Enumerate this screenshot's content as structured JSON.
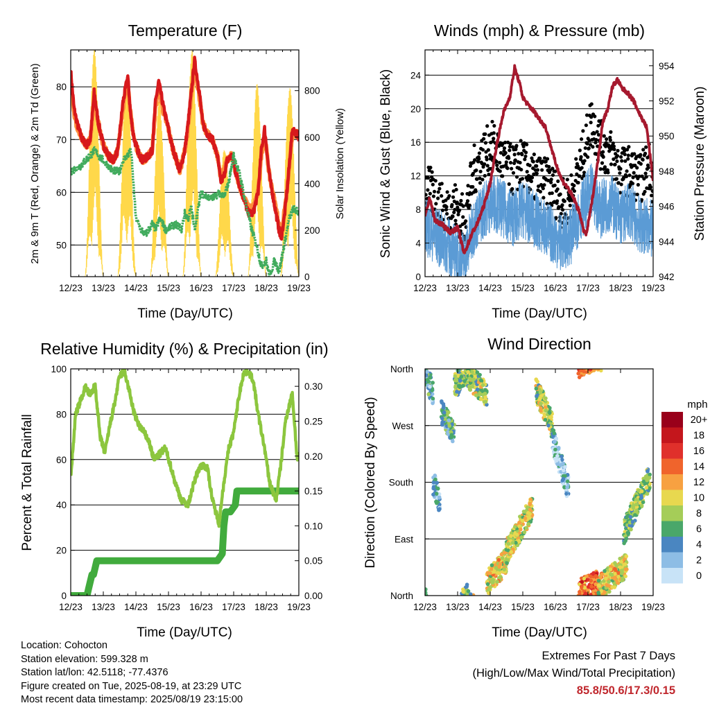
{
  "chart_data": [
    {
      "type": "line",
      "title": "Temperature (F)",
      "xlabel": "Time (Day/UTC)",
      "ylabel": "2m & 9m T (Red, Orange) & 2m Td (Green)",
      "ylabel_right": "Solar Insolation (Yellow)",
      "x_ticks": [
        "12/23",
        "13/23",
        "14/23",
        "15/23",
        "16/23",
        "17/23",
        "18/23",
        "19/23"
      ],
      "ylim": [
        44,
        87
      ],
      "y_ticks": [
        "50",
        "60",
        "70",
        "80"
      ],
      "ylim_right": [
        0,
        975
      ],
      "y_ticks_right": [
        "0",
        "200",
        "400",
        "600",
        "800"
      ],
      "series": [
        {
          "name": "2m T",
          "color": "#d7191c",
          "x": [
            0,
            0.1,
            0.2,
            0.35,
            0.5,
            0.6,
            0.72,
            0.85,
            1,
            1.15,
            1.3,
            1.45,
            1.5,
            1.6,
            1.75,
            1.85,
            1.95,
            2.05,
            2.2,
            2.4,
            2.5,
            2.6,
            2.7,
            2.85,
            3,
            3.1,
            3.2,
            3.35,
            3.5,
            3.6,
            3.7,
            3.8,
            3.95,
            4.05,
            4.2,
            4.35,
            4.5,
            4.6,
            4.7,
            4.8,
            4.95,
            5.05,
            5.25,
            5.45,
            5.6,
            5.75,
            5.85,
            5.95,
            6.1,
            6.3,
            6.45,
            6.55,
            6.65,
            6.8,
            6.95,
            7
          ],
          "values": [
            83,
            76,
            73,
            70,
            69,
            70,
            79,
            73,
            69,
            67,
            66,
            68,
            71,
            77,
            82,
            74,
            70,
            68,
            66,
            67,
            68,
            77,
            81,
            76,
            72,
            69,
            67,
            64,
            68,
            73,
            79,
            85,
            79,
            73,
            71,
            70,
            67,
            62,
            63,
            66,
            67,
            64,
            60,
            56,
            56,
            60,
            68,
            72,
            63,
            56,
            51,
            55,
            61,
            72,
            71,
            70
          ]
        },
        {
          "name": "9m T",
          "color": "#fd8d3c",
          "x": [
            0,
            0.1,
            0.2,
            0.35,
            0.5,
            0.6,
            0.72,
            0.85,
            1,
            1.15,
            1.3,
            1.45,
            1.5,
            1.6,
            1.75,
            1.85,
            1.95,
            2.05,
            2.2,
            2.4,
            2.5,
            2.6,
            2.7,
            2.85,
            3,
            3.1,
            3.2,
            3.35,
            3.5,
            3.6,
            3.7,
            3.8,
            3.95,
            4.05,
            4.2,
            4.35,
            4.5,
            4.6,
            4.7,
            4.8,
            4.95,
            5.05,
            5.25,
            5.45,
            5.6,
            5.75,
            5.85,
            5.95,
            6.1,
            6.3,
            6.45,
            6.55,
            6.65,
            6.8,
            6.95,
            7
          ],
          "values": [
            82,
            75,
            72,
            70,
            69,
            70,
            78,
            73,
            69,
            67,
            66,
            68,
            71,
            76,
            81,
            74,
            70,
            68,
            66,
            67,
            68,
            76,
            80,
            75,
            72,
            69,
            67,
            64,
            68,
            72,
            78,
            84,
            78,
            73,
            71,
            70,
            67,
            63,
            64,
            66,
            67,
            64,
            60,
            57,
            57,
            60,
            67,
            71,
            63,
            57,
            52,
            56,
            61,
            71,
            71,
            70
          ]
        },
        {
          "name": "2m Td",
          "color": "#41ab5d",
          "x": [
            0,
            0.3,
            0.6,
            0.75,
            0.85,
            1,
            1.15,
            1.3,
            1.5,
            1.6,
            1.75,
            1.85,
            2,
            2.15,
            2.3,
            2.5,
            2.6,
            2.75,
            2.9,
            3,
            3.2,
            3.4,
            3.5,
            3.6,
            3.7,
            3.8,
            4,
            4.2,
            4.4,
            4.55,
            4.7,
            4.85,
            5,
            5.2,
            5.4,
            5.55,
            5.7,
            5.85,
            6,
            6.1,
            6.25,
            6.4,
            6.55,
            6.7,
            6.85,
            7
          ],
          "values": [
            64,
            65,
            67,
            68,
            67,
            66,
            65,
            64,
            64,
            66,
            67,
            68,
            55,
            53,
            52,
            54,
            53,
            55,
            53,
            53,
            54,
            53,
            56,
            55,
            57,
            53,
            60,
            59,
            59,
            60,
            59,
            62,
            67,
            63,
            57,
            53,
            50,
            46,
            47,
            44,
            47,
            45,
            50,
            55,
            57,
            56
          ]
        }
      ],
      "solar_series": {
        "name": "Solar Insolation",
        "color": "#ffd84a",
        "peak_days": [
          0.72,
          1.72,
          2.72,
          3.72,
          4.72,
          5.72,
          6.72
        ],
        "peaks": [
          980,
          870,
          760,
          980,
          560,
          830,
          820
        ]
      }
    },
    {
      "type": "line",
      "title": "Winds (mph) & Pressure (mb)",
      "xlabel": "Time (Day/UTC)",
      "ylabel": "Sonic Wind & Gust (Blue, Black)",
      "ylabel_right": "Station Pressure (Maroon)",
      "x_ticks": [
        "12/23",
        "13/23",
        "14/23",
        "15/23",
        "16/23",
        "17/23",
        "18/23",
        "19/23"
      ],
      "ylim": [
        0,
        27
      ],
      "y_ticks": [
        "0",
        "4",
        "8",
        "12",
        "16",
        "20",
        "24"
      ],
      "ylim_right": [
        942,
        954.9
      ],
      "y_ticks_right": [
        "942",
        "944",
        "946",
        "948",
        "950",
        "952",
        "954"
      ],
      "series": [
        {
          "name": "Sonic Wind",
          "color": "#5b9bd5",
          "x": [
            0,
            0.3,
            0.6,
            0.9,
            1.2,
            1.5,
            1.8,
            2.1,
            2.4,
            2.7,
            3,
            3.3,
            3.6,
            3.9,
            4.2,
            4.5,
            4.8,
            5.1,
            5.4,
            5.7,
            6,
            6.3,
            6.6,
            6.9,
            7
          ],
          "values": [
            6,
            5,
            4,
            3,
            2,
            6,
            8,
            9,
            8,
            7,
            8,
            7,
            6,
            5,
            4,
            5,
            8,
            10,
            8,
            9,
            7,
            8,
            6,
            6,
            5
          ]
        },
        {
          "name": "Gust",
          "color": "#000000",
          "x": [
            0,
            0.3,
            0.6,
            0.9,
            1.2,
            1.5,
            1.8,
            2.1,
            2.4,
            2.7,
            3,
            3.3,
            3.6,
            3.9,
            4.2,
            4.5,
            4.8,
            5.1,
            5.4,
            5.7,
            6,
            6.3,
            6.6,
            6.9,
            7
          ],
          "values": [
            10,
            9,
            7,
            8,
            6,
            12,
            14,
            15,
            13,
            12,
            13,
            11,
            11,
            10,
            8,
            9,
            13,
            18,
            15,
            14,
            12,
            12,
            11,
            13,
            10
          ]
        }
      ],
      "pressure_series": {
        "name": "Station Pressure",
        "color": "#a6192e",
        "x": [
          0,
          0.15,
          0.3,
          0.5,
          0.8,
          1,
          1.2,
          1.45,
          1.6,
          1.8,
          2,
          2.2,
          2.4,
          2.6,
          2.75,
          2.9,
          3,
          3.15,
          3.3,
          3.5,
          3.7,
          3.85,
          4,
          4.2,
          4.4,
          4.6,
          4.75,
          4.85,
          4.95,
          5.1,
          5.3,
          5.45,
          5.6,
          5.75,
          5.9,
          6.05,
          6.2,
          6.4,
          6.6,
          6.8,
          6.9,
          7
        ],
        "values": [
          945.4,
          946.5,
          945.2,
          945.0,
          944.5,
          944.8,
          943.3,
          944.5,
          945.0,
          946.0,
          947.3,
          949.5,
          951.3,
          952.2,
          953.9,
          953.0,
          952.2,
          951.8,
          951.5,
          951.0,
          950.5,
          949.5,
          948.5,
          947.5,
          947.0,
          946.3,
          945.6,
          944.7,
          944.4,
          946.0,
          948.5,
          950.8,
          951.5,
          952.8,
          953.2,
          952.7,
          952.5,
          952.0,
          951.2,
          950.5,
          949.0,
          947.5
        ]
      }
    },
    {
      "type": "line",
      "title": "Relative Humidity (%) & Precipitation (in)",
      "xlabel": "Time (Day/UTC)",
      "ylabel": "Percent & Total Rainfall",
      "x_ticks": [
        "12/23",
        "13/23",
        "14/23",
        "15/23",
        "16/23",
        "17/23",
        "18/23",
        "19/23"
      ],
      "ylim": [
        0,
        100
      ],
      "y_ticks": [
        "0",
        "20",
        "40",
        "60",
        "80",
        "100"
      ],
      "ylim_right": [
        0,
        0.325
      ],
      "y_ticks_right": [
        "0.00",
        "0.05",
        "0.10",
        "0.15",
        "0.20",
        "0.25",
        "0.30"
      ],
      "series": [
        {
          "name": "Relative Humidity",
          "color": "#8cc63e",
          "x": [
            0,
            0.15,
            0.3,
            0.45,
            0.6,
            0.75,
            0.9,
            1.05,
            1.2,
            1.35,
            1.5,
            1.65,
            1.8,
            1.95,
            2.1,
            2.25,
            2.4,
            2.55,
            2.7,
            2.9,
            3.05,
            3.2,
            3.4,
            3.6,
            3.75,
            3.9,
            4.05,
            4.2,
            4.35,
            4.55,
            4.7,
            4.85,
            5,
            5.15,
            5.3,
            5.45,
            5.6,
            5.75,
            5.95,
            6.1,
            6.3,
            6.45,
            6.6,
            6.8,
            6.95,
            7
          ],
          "values": [
            52,
            80,
            86,
            92,
            88,
            93,
            70,
            63,
            75,
            85,
            97,
            99,
            90,
            80,
            75,
            72,
            68,
            60,
            62,
            65,
            58,
            50,
            42,
            40,
            48,
            55,
            58,
            56,
            42,
            32,
            50,
            65,
            72,
            87,
            98,
            99,
            95,
            80,
            65,
            50,
            42,
            58,
            78,
            89,
            60,
            63
          ]
        },
        {
          "name": "Total Precipitation",
          "color": "#41ab3d",
          "x": [
            0,
            0.5,
            0.55,
            0.65,
            0.7,
            0.8,
            0.9,
            1,
            2,
            3,
            4,
            4.5,
            4.65,
            4.7,
            4.75,
            4.9,
            5.05,
            5.1,
            5.2,
            6,
            7
          ],
          "values": [
            0,
            0,
            0.01,
            0.03,
            0.03,
            0.05,
            0.05,
            0.05,
            0.05,
            0.05,
            0.05,
            0.05,
            0.06,
            0.1,
            0.12,
            0.12,
            0.13,
            0.15,
            0.15,
            0.15,
            0.15
          ]
        }
      ]
    },
    {
      "type": "scatter",
      "title": "Wind Direction",
      "xlabel": "Time (Day/UTC)",
      "ylabel": "Direction (Colored By Speed)",
      "x_ticks": [
        "12/23",
        "13/23",
        "14/23",
        "15/23",
        "16/23",
        "17/23",
        "18/23",
        "19/23"
      ],
      "y_ticks": [
        "North",
        "East",
        "South",
        "West",
        "North"
      ],
      "ylim": [
        0,
        360
      ],
      "colorbar": {
        "unit": "mph",
        "labels": [
          "20+",
          "18",
          "16",
          "14",
          "12",
          "10",
          "8",
          "6",
          "4",
          "2",
          "0"
        ],
        "colors": [
          "#99001a",
          "#c4161c",
          "#e0302b",
          "#f0642c",
          "#f7a141",
          "#e8d84f",
          "#a5cd58",
          "#4aa76a",
          "#4a86c1",
          "#8dbde5",
          "#c8e3f7"
        ]
      },
      "clusters": [
        {
          "x0": 0.0,
          "x1": 0.25,
          "dir0": 355,
          "dir1": 320,
          "speed": 4
        },
        {
          "x0": 0.25,
          "x1": 0.45,
          "dir0": 180,
          "dir1": 150,
          "speed": 3
        },
        {
          "x0": 0.5,
          "x1": 0.9,
          "dir0": 290,
          "dir1": 260,
          "speed": 5
        },
        {
          "x0": 0.9,
          "x1": 1.3,
          "dir0": 330,
          "dir1": 360,
          "speed": 7
        },
        {
          "x0": 1.3,
          "x1": 1.9,
          "dir0": 350,
          "dir1": 320,
          "speed": 8
        },
        {
          "x0": 1.9,
          "x1": 2.5,
          "dir0": 20,
          "dir1": 55,
          "speed": 10
        },
        {
          "x0": 2.5,
          "x1": 3.3,
          "dir0": 70,
          "dir1": 140,
          "speed": 9
        },
        {
          "x0": 3.4,
          "x1": 3.9,
          "dir0": 330,
          "dir1": 270,
          "speed": 8
        },
        {
          "x0": 3.9,
          "x1": 4.4,
          "dir0": 250,
          "dir1": 170,
          "speed": 3
        },
        {
          "x0": 4.7,
          "x1": 5.3,
          "dir0": 5,
          "dir1": 20,
          "speed": 14
        },
        {
          "x0": 5.3,
          "x1": 6.2,
          "dir0": 10,
          "dir1": 50,
          "speed": 10
        },
        {
          "x0": 6.1,
          "x1": 6.9,
          "dir0": 100,
          "dir1": 190,
          "speed": 7
        }
      ]
    }
  ],
  "station_info": {
    "location": "Location: Cohocton",
    "elevation": "Station elevation: 599.328 m",
    "latlon": "Station lat/lon: 42.5118; -77.4376",
    "created": "Figure created on Tue, 2025-08-19, at 23:29 UTC",
    "latest": "Most recent data timestamp: 2025/08/19 23:15:00"
  },
  "extremes": {
    "title": "Extremes For Past 7 Days",
    "subtitle": "(High/Low/Max Wind/Total Precipitation)",
    "values": "85.8/50.6/17.3/0.15"
  }
}
